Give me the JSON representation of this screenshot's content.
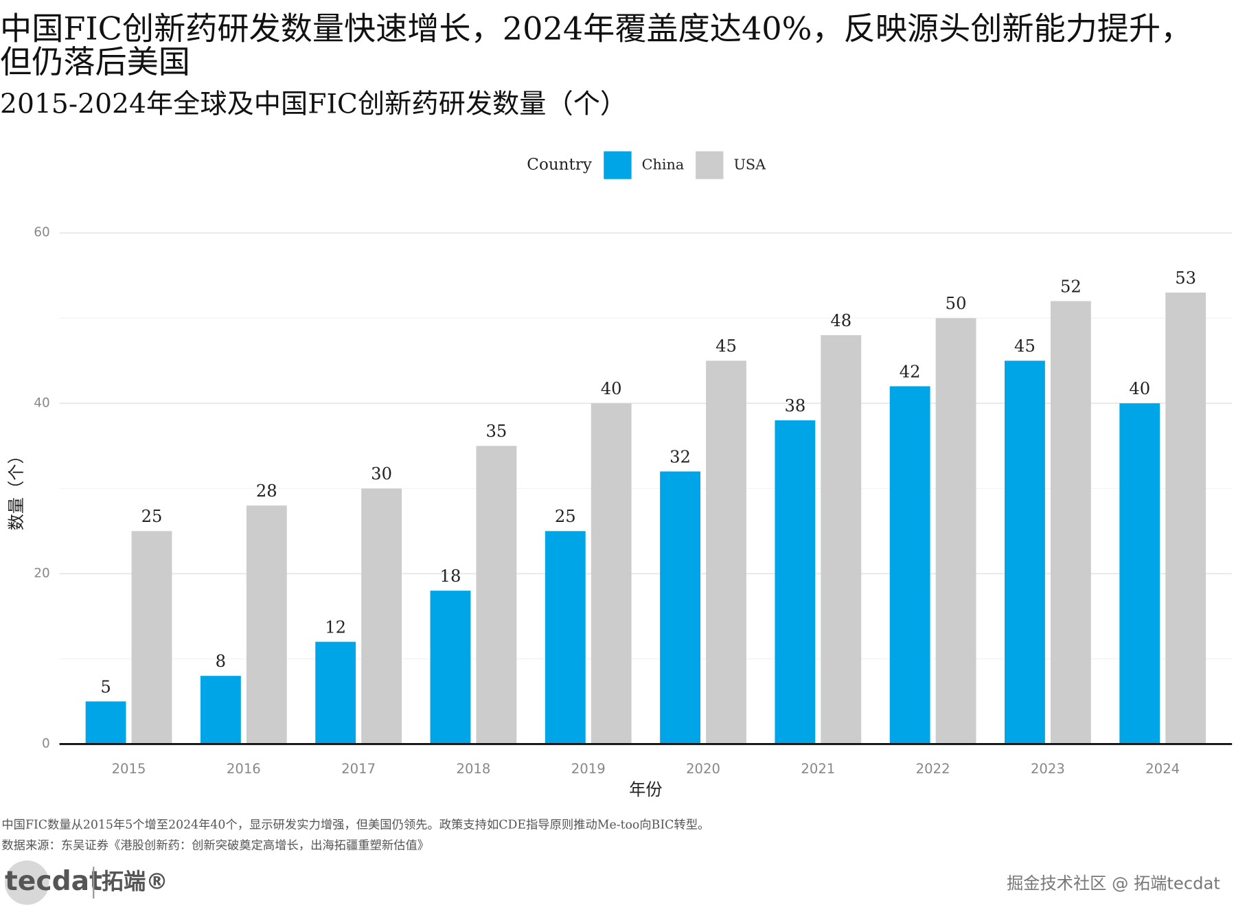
{
  "chart_data": {
    "type": "bar",
    "title": "中国FIC创新药研发数量快速增长，2024年覆盖度达40%，反映源头创新能力提升，但仍落后美国",
    "subtitle": "2015-2024年全球及中国FIC创新药研发数量（个）",
    "legend_title": "Country",
    "legend_position": "top",
    "x_label": "年份",
    "y_label": "数量（个）",
    "categories": [
      "2015",
      "2016",
      "2017",
      "2018",
      "2019",
      "2020",
      "2021",
      "2022",
      "2023",
      "2024"
    ],
    "series": [
      {
        "name": "China",
        "color": "#00a5e8",
        "values": [
          5,
          8,
          12,
          18,
          25,
          32,
          38,
          42,
          45,
          40
        ]
      },
      {
        "name": "USA",
        "color": "#cccccc",
        "values": [
          25,
          28,
          30,
          35,
          40,
          45,
          48,
          50,
          52,
          53
        ]
      }
    ],
    "ylim": [
      0,
      60
    ],
    "yticks": [
      0,
      20,
      40,
      60
    ],
    "minor_yticks": [
      10,
      30,
      50
    ],
    "grid": true,
    "notes": [
      "中国FIC数量从2015年5个增至2024年40个，显示研发实力增强，但美国仍领先。政策支持如CDE指导原则推动Me-too向BIC转型。",
      "数据来源：东吴证券《港股创新药：创新突破奠定高增长，出海拓疆重塑新估值》"
    ],
    "logo": "tecdat",
    "logo_cn": "拓端®",
    "watermark": "掘金技术社区 @ 拓端tecdat"
  }
}
